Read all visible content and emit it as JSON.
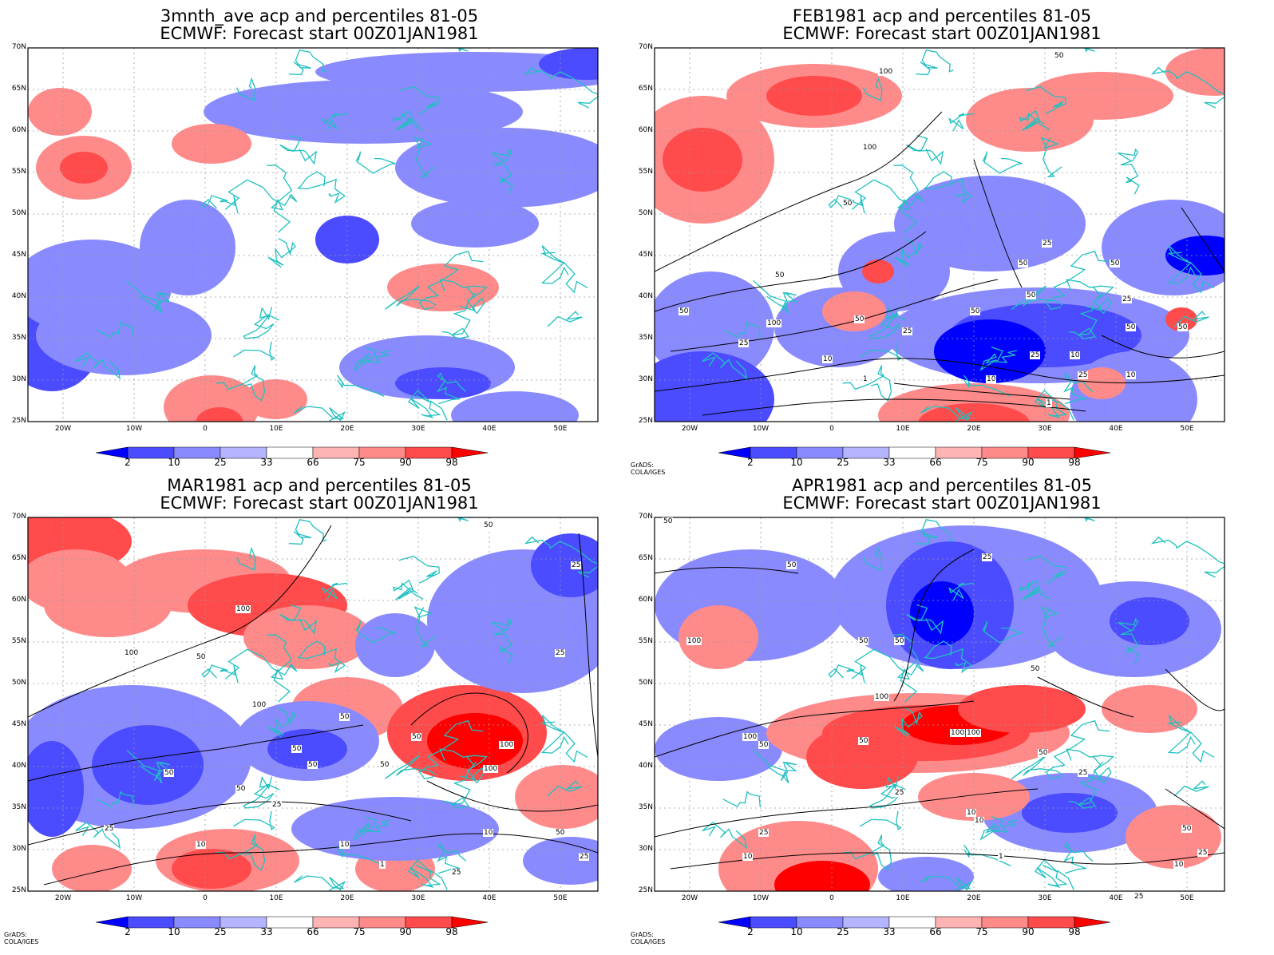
{
  "credit": "GrADS: COLA/IGES",
  "lat_labels": [
    "70N",
    "65N",
    "60N",
    "55N",
    "50N",
    "45N",
    "40N",
    "35N",
    "30N",
    "25N"
  ],
  "lon_labels": [
    "20W",
    "10W",
    "0",
    "10E",
    "20E",
    "30E",
    "40E",
    "50E"
  ],
  "legend": {
    "ticks": [
      "2",
      "10",
      "25",
      "33",
      "66",
      "75",
      "90",
      "98"
    ],
    "colors": [
      "#0000ff",
      "#4b4bff",
      "#8a8aff",
      "#b4b4ff",
      "#ffffff",
      "#ffb4b4",
      "#ff8a8a",
      "#ff4b4b",
      "#ff0000"
    ]
  },
  "palette": {
    "land_coast": "#20c0c0",
    "contour": "#000000",
    "grid": "#999999"
  },
  "panels": [
    {
      "title1": "3mnth_ave acp and percentiles 81-05",
      "title2": "ECMWF: Forecast start 00Z01JAN1981",
      "show_credit": false,
      "contour_labels": []
    },
    {
      "title1": "FEB1981 acp and percentiles 81-05",
      "title2": "ECMWF: Forecast start 00Z01JAN1981",
      "show_credit": true,
      "contour_labels": [
        "100",
        "100",
        "50",
        "50",
        "25",
        "25",
        "50",
        "50",
        "50",
        "100",
        "50",
        "50",
        "50",
        "25",
        "10",
        "10",
        "25",
        "10",
        "1",
        "25",
        "50",
        "25",
        "1",
        "10",
        "50",
        "50"
      ]
    },
    {
      "title1": "MAR1981 acp and percentiles 81-05",
      "title2": "ECMWF: Forecast start 00Z01JAN1981",
      "show_credit": true,
      "contour_labels": [
        "50",
        "25",
        "100",
        "100",
        "50",
        "25",
        "100",
        "50",
        "50",
        "50",
        "50",
        "50",
        "100",
        "100",
        "50",
        "50",
        "25",
        "25",
        "10",
        "10",
        "25",
        "10",
        "1",
        "50",
        "25"
      ]
    },
    {
      "title1": "APR1981 acp and percentiles 81-05",
      "title2": "ECMWF: Forecast start 00Z01JAN1981",
      "show_credit": true,
      "contour_labels": [
        "50",
        "25",
        "50",
        "100",
        "50",
        "50",
        "50",
        "100",
        "100",
        "100",
        "100",
        "50",
        "50",
        "25",
        "50",
        "25",
        "25",
        "10",
        "25",
        "10",
        "1",
        "50",
        "25",
        "10",
        "10"
      ]
    }
  ]
}
